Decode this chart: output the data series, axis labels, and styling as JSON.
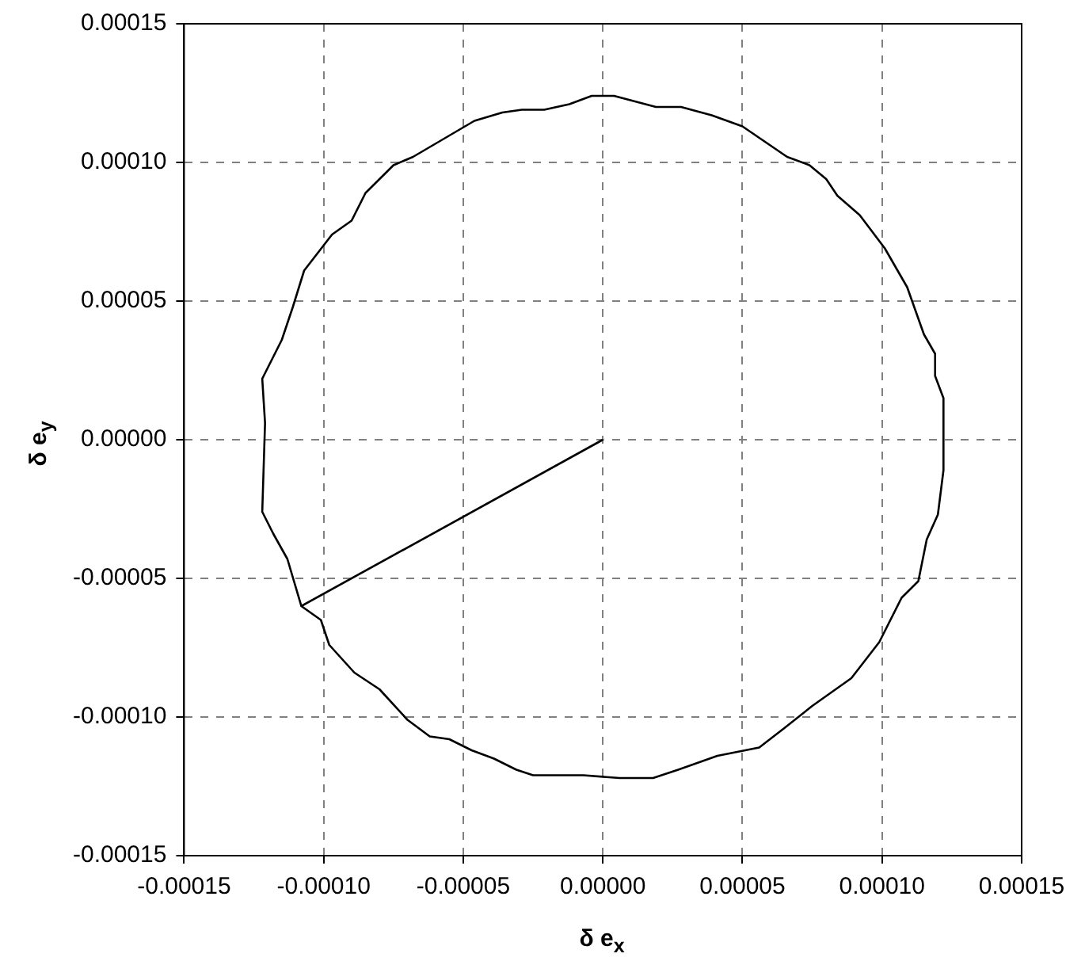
{
  "chart_data": {
    "type": "line",
    "xlabel": "δ e$_{x}$",
    "ylabel": "δ e$_{y}$",
    "x": [
      0,
      -0.000108,
      -0.000101,
      -9.8e-05,
      -8.9e-05,
      -8e-05,
      -7e-05,
      -6.2e-05,
      -5.5e-05,
      -4.7e-05,
      -3.9e-05,
      -3.1e-05,
      -2.5e-05,
      -7e-06,
      6e-06,
      1.8e-05,
      2.7e-05,
      4.1e-05,
      5.6e-05,
      6.5e-05,
      7.5e-05,
      8.9e-05,
      9.9e-05,
      0.000107,
      0.000113,
      0.000116,
      0.00012,
      0.000122,
      0.000122,
      0.000119,
      0.000119,
      0.000115,
      0.000109,
      0.000101,
      9.2e-05,
      8.4e-05,
      8e-05,
      7.4e-05,
      6.6e-05,
      5e-05,
      3.9e-05,
      2.8e-05,
      1.9e-05,
      4e-06,
      -4e-06,
      -1.2e-05,
      -2.1e-05,
      -2.9e-05,
      -3.6e-05,
      -4.6e-05,
      -6.8e-05,
      -7.5e-05,
      -8e-05,
      -8.5e-05,
      -9e-05,
      -9.7e-05,
      -0.000107,
      -0.000111,
      -0.000115,
      -0.000122,
      -0.000121,
      -0.000122,
      -0.000118,
      -0.000113,
      -0.000108
    ],
    "values": [
      0,
      -6e-05,
      -6.5e-05,
      -7.4e-05,
      -8.4e-05,
      -9e-05,
      -0.000101,
      -0.000107,
      -0.000108,
      -0.000112,
      -0.000115,
      -0.000119,
      -0.000121,
      -0.000121,
      -0.000122,
      -0.000122,
      -0.000119,
      -0.000114,
      -0.000111,
      -0.000104,
      -9.6e-05,
      -8.6e-05,
      -7.3e-05,
      -5.7e-05,
      -5.1e-05,
      -3.6e-05,
      -2.7e-05,
      -1.1e-05,
      1.5e-05,
      2.3e-05,
      3.1e-05,
      3.8e-05,
      5.5e-05,
      6.9e-05,
      8.1e-05,
      8.8e-05,
      9.4e-05,
      9.9e-05,
      0.000102,
      0.000113,
      0.000117,
      0.00012,
      0.00012,
      0.000124,
      0.000124,
      0.000121,
      0.000119,
      0.000119,
      0.000118,
      0.000115,
      0.000102,
      9.9e-05,
      9.4e-05,
      8.9e-05,
      7.9e-05,
      7.4e-05,
      6.1e-05,
      4.8e-05,
      3.6e-05,
      2.2e-05,
      6e-06,
      -2.6e-05,
      -3.4e-05,
      -4.3e-05,
      -6e-05
    ],
    "color": "#000000",
    "marker": "none",
    "grid": true,
    "xlim": [
      -0.00015,
      0.00015
    ],
    "ylim": [
      -0.00015,
      0.00015
    ],
    "xticks": [
      {
        "value": -0.00015,
        "label": "-0.00015"
      },
      {
        "value": -0.0001,
        "label": "-0.00010"
      },
      {
        "value": -5e-05,
        "label": "-0.00005"
      },
      {
        "value": 0,
        "label": "0.00000"
      },
      {
        "value": 5e-05,
        "label": "0.00005"
      },
      {
        "value": 0.0001,
        "label": "0.00010"
      },
      {
        "value": 0.00015,
        "label": "0.00015"
      }
    ],
    "yticks": [
      {
        "value": -0.00015,
        "label": "-0.00015"
      },
      {
        "value": -0.0001,
        "label": "-0.00010"
      },
      {
        "value": -5e-05,
        "label": "-0.00005"
      },
      {
        "value": 0,
        "label": "0.00000"
      },
      {
        "value": 5e-05,
        "label": "0.00005"
      },
      {
        "value": 0.0001,
        "label": "0.00010"
      },
      {
        "value": 0.00015,
        "label": "0.00015"
      }
    ]
  }
}
